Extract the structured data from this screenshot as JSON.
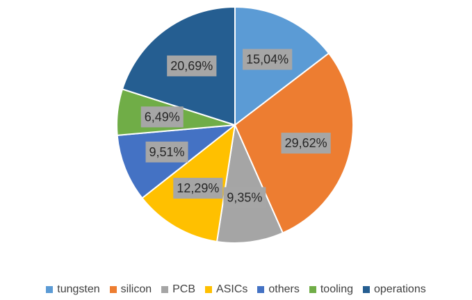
{
  "chart_data": {
    "type": "pie",
    "title": "",
    "categories": [
      "tungsten",
      "silicon",
      "PCB",
      "ASICs",
      "others",
      "tooling",
      "operations"
    ],
    "values": [
      15.04,
      29.62,
      9.35,
      12.29,
      9.51,
      6.49,
      20.69
    ],
    "labels": [
      "15,04%",
      "29,62%",
      "9,35%",
      "12,29%",
      "9,51%",
      "6,49%",
      "20,69%"
    ],
    "colors": [
      "#5b9bd5",
      "#ed7d31",
      "#a5a5a5",
      "#ffc000",
      "#4472c4",
      "#70ad47",
      "#255e91"
    ],
    "legend_position": "bottom",
    "label_background": "#a6a6a6"
  }
}
